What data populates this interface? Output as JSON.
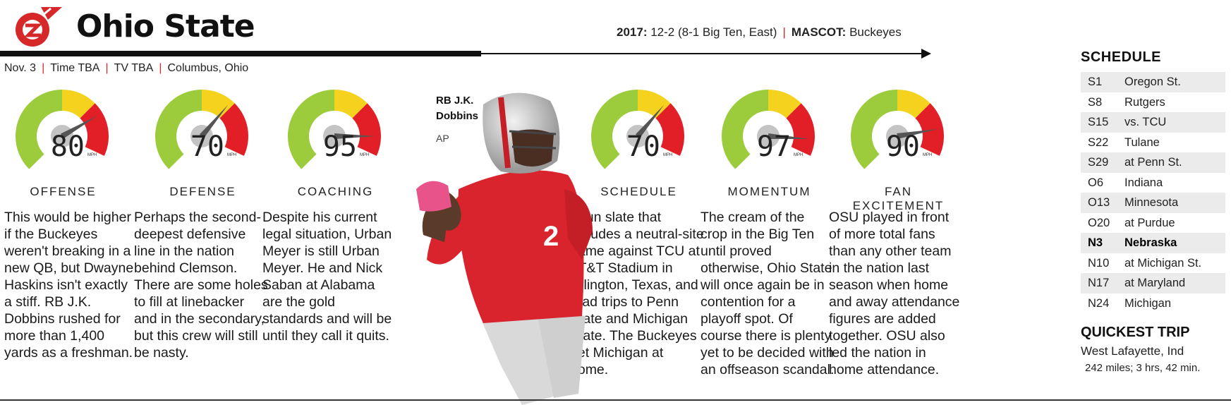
{
  "team": {
    "name": "Ohio State"
  },
  "season": {
    "record_label": "2017:",
    "record_value": "12-2 (8-1 Big Ten, East)",
    "mascot_label": "MASCOT:",
    "mascot_value": "Buckeyes"
  },
  "game": {
    "date": "Nov. 3",
    "time": "Time TBA",
    "tv": "TV TBA",
    "location": "Columbus, Ohio"
  },
  "colors": {
    "green": "#9ccc3c",
    "yellow": "#f4d21e",
    "red": "#e21f26",
    "accent": "#d62828"
  },
  "gauges": [
    {
      "label": "OFFENSE",
      "value": 80,
      "unit": "MPH",
      "text": "This would be higher if the Buckeyes weren't breaking in a new QB, but Dwayne Haskins isn't exactly a stiff. RB J.K. Dobbins rushed for more than 1,400 yards as a freshman."
    },
    {
      "label": "DEFENSE",
      "value": 70,
      "unit": "MPH",
      "text": "Perhaps the second-deepest defensive line in the nation behind Clemson. There are some holes to fill at linebacker and in the secondary, but this crew will still be nasty."
    },
    {
      "label": "COACHING",
      "value": 95,
      "unit": "MPH",
      "text": "Despite his current legal situation, Urban Meyer is still Urban Meyer. He and Nick Saban at Alabama are the gold standards and will be until they call it quits."
    },
    {
      "label": "SCHEDULE",
      "value": 70,
      "unit": "MPH",
      "text": "A fun slate that includes a neutral-site game against TCU at AT&T Stadium in Arlington, Texas, and road trips to Penn State and Michigan State. The Buckeyes get Michigan at home."
    },
    {
      "label": "MOMENTUM",
      "value": 97,
      "unit": "MPH",
      "text": "The cream of the crop in the Big Ten until proved otherwise, Ohio State will once again be in contention for a playoff spot. Of course there is plenty yet to be decided with an offseason scandal."
    },
    {
      "label": "FAN EXCITEMENT",
      "value": 90,
      "unit": "MPH",
      "text": "OSU played in front of more total fans than any other team in the nation last season when home and away attendance figures are added together. OSU also led the nation in home attendance."
    }
  ],
  "photo": {
    "caption_line1": "RB J.K.",
    "caption_line2": "Dobbins",
    "credit": "AP"
  },
  "schedule": {
    "title": "SCHEDULE",
    "games": [
      {
        "date": "S1",
        "opponent": "Oregon St."
      },
      {
        "date": "S8",
        "opponent": "Rutgers"
      },
      {
        "date": "S15",
        "opponent": "vs. TCU"
      },
      {
        "date": "S22",
        "opponent": "Tulane"
      },
      {
        "date": "S29",
        "opponent": "at Penn St."
      },
      {
        "date": "O6",
        "opponent": "Indiana"
      },
      {
        "date": "O13",
        "opponent": "Minnesota"
      },
      {
        "date": "O20",
        "opponent": "at Purdue"
      },
      {
        "date": "N3",
        "opponent": "Nebraska",
        "highlight": true
      },
      {
        "date": "N10",
        "opponent": "at Michigan St."
      },
      {
        "date": "N17",
        "opponent": "at Maryland"
      },
      {
        "date": "N24",
        "opponent": "Michigan"
      }
    ]
  },
  "quickest_trip": {
    "title": "QUICKEST TRIP",
    "city": "West Lafayette, Ind",
    "detail": "242 miles; 3 hrs, 42 min."
  }
}
